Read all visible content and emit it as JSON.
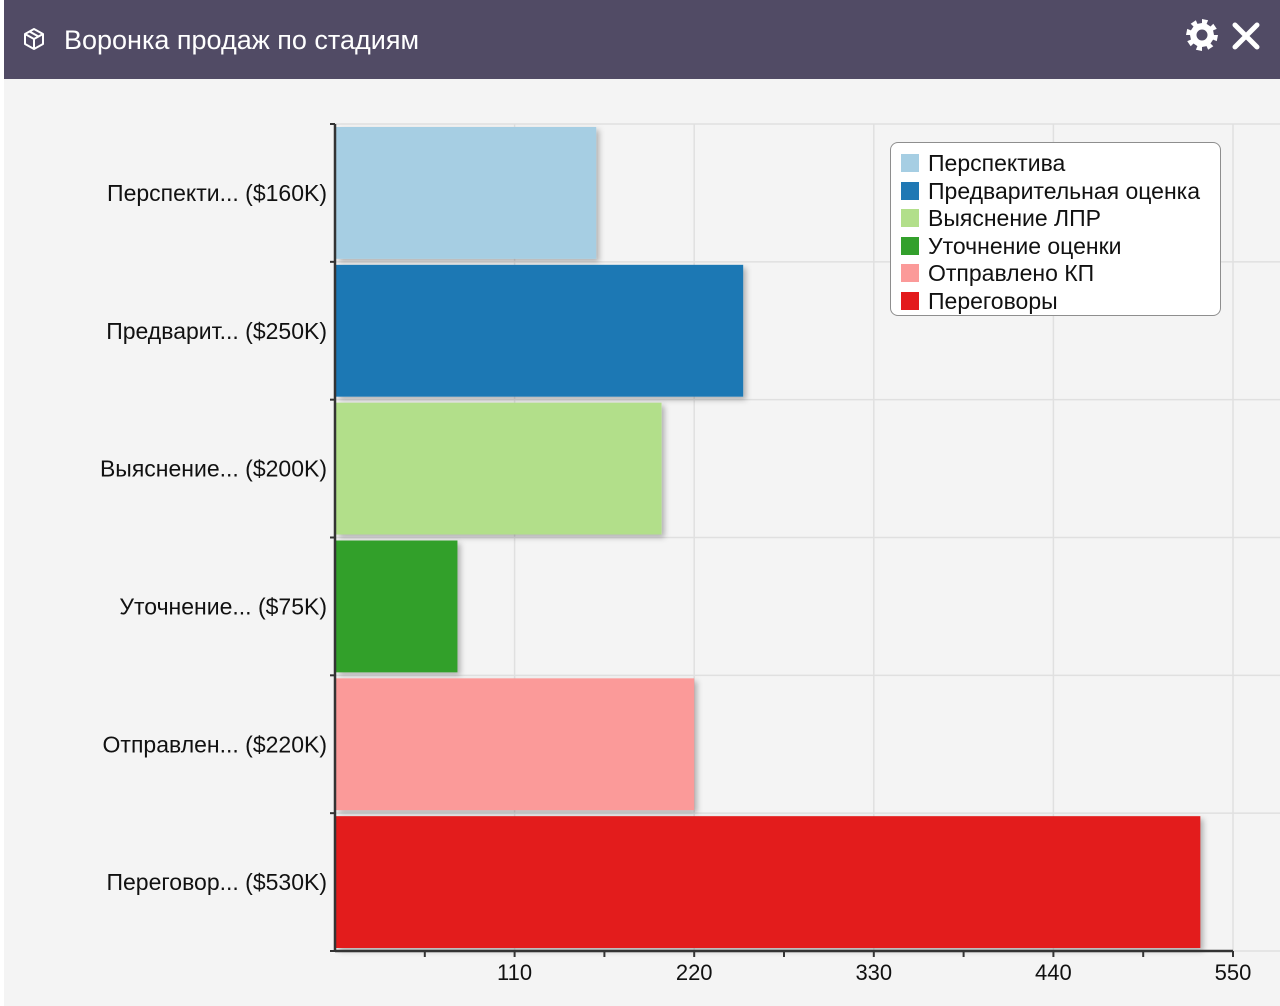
{
  "window": {
    "title": "Воронка продаж по стадиям",
    "title_icon": "cube-icon",
    "actions": [
      {
        "name": "settings",
        "icon": "gear-icon"
      },
      {
        "name": "close",
        "icon": "close-icon"
      }
    ]
  },
  "chart_data": {
    "type": "bar",
    "orientation": "horizontal",
    "categories": [
      "Перспекти... ($160K)",
      "Предварит... ($250K)",
      "Выяснение... ($200K)",
      "Уточнение... ($75K)",
      "Отправлен... ($220K)",
      "Переговор... ($530K)"
    ],
    "values": [
      160,
      250,
      200,
      75,
      220,
      530
    ],
    "colors": [
      "#a6cee3",
      "#1f78b4",
      "#b2df8a",
      "#33a02c",
      "#fb9a99",
      "#e31a1c"
    ],
    "xlim": [
      0,
      550
    ],
    "xticks": [
      110,
      220,
      330,
      440,
      550
    ],
    "grid": true,
    "legend_position": "top-right",
    "legend": [
      {
        "label": "Перспектива",
        "color": "#a6cee3"
      },
      {
        "label": "Предварительная оценка",
        "color": "#1f78b4"
      },
      {
        "label": "Выяснение ЛПР",
        "color": "#b2df8a"
      },
      {
        "label": "Уточнение оценки",
        "color": "#33a02c"
      },
      {
        "label": "Отправлено КП",
        "color": "#fb9a99"
      },
      {
        "label": "Переговоры",
        "color": "#e31a1c"
      }
    ]
  }
}
